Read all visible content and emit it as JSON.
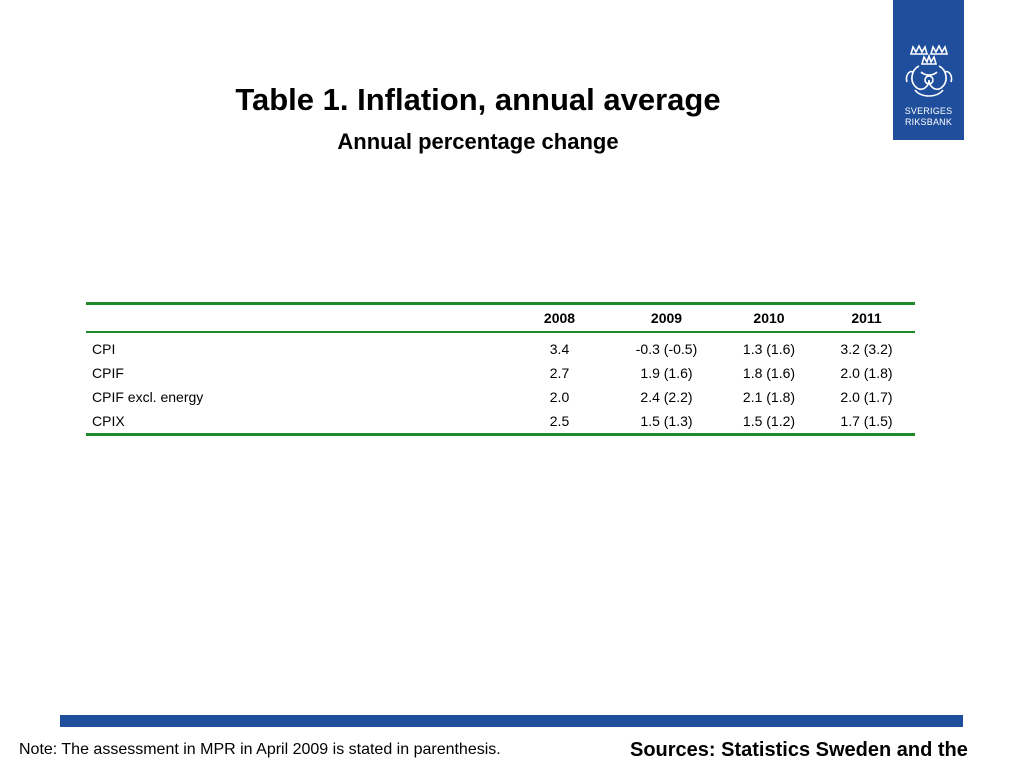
{
  "logo": {
    "line1": "SVERIGES",
    "line2": "RIKSBANK",
    "background": "#1f4e9c",
    "icon": "crown-emblem-icon"
  },
  "title": "Table 1. Inflation, annual average",
  "subtitle": "Annual percentage change",
  "table": {
    "headers": [
      "",
      "2008",
      "2009",
      "2010",
      "2011"
    ],
    "rows": [
      {
        "label": "CPI",
        "values": [
          "3.4",
          "-0.3 (-0.5)",
          "1.3 (1.6)",
          "3.2 (3.2)"
        ]
      },
      {
        "label": "CPIF",
        "values": [
          "2.7",
          "1.9 (1.6)",
          "1.8 (1.6)",
          "2.0 (1.8)"
        ]
      },
      {
        "label": "CPIF excl. energy",
        "values": [
          "2.0",
          "2.4 (2.2)",
          "2.1 (1.8)",
          "2.0 (1.7)"
        ]
      },
      {
        "label": "CPIX",
        "values": [
          "2.5",
          "1.5 (1.3)",
          "1.5 (1.2)",
          "1.7 (1.5)"
        ]
      }
    ],
    "rule_color": "#1e8a2a"
  },
  "note": "Note: The assessment in MPR in April 2009 is stated in parenthesis.",
  "sources": "Sources: Statistics Sweden and the",
  "bottom_bar_color": "#1f4e9c"
}
